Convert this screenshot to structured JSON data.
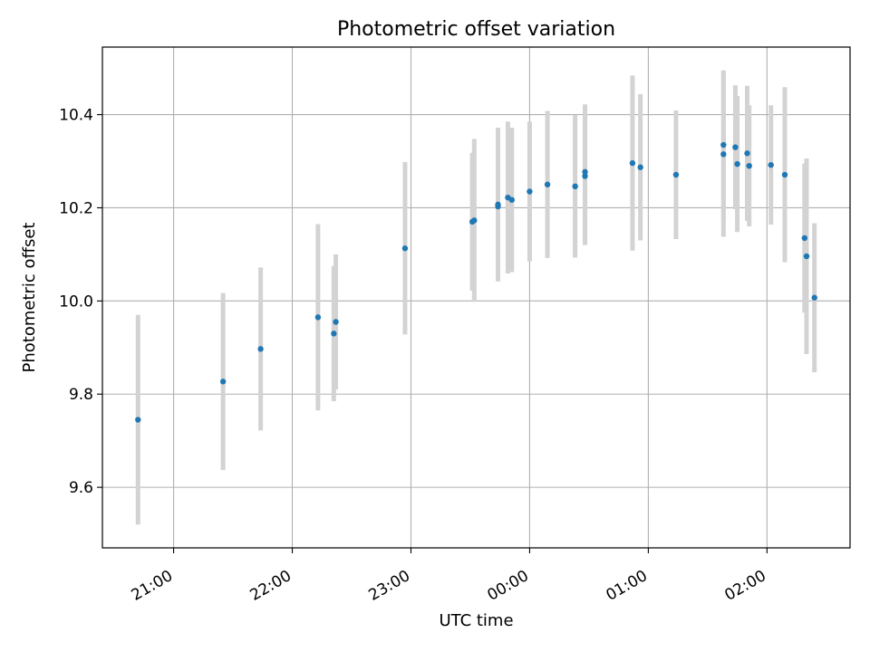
{
  "chart_data": {
    "type": "scatter",
    "title": "Photometric offset variation",
    "xlabel": "UTC time",
    "ylabel": "Photometric offset",
    "x_unit": "UTC",
    "xlim": [
      "20:24",
      "26:42"
    ],
    "ylim": [
      9.47,
      10.545
    ],
    "grid": true,
    "x_ticks": [
      "21:00",
      "22:00",
      "23:00",
      "00:00",
      "01:00",
      "02:00"
    ],
    "y_ticks": [
      "9.6",
      "9.8",
      "10.0",
      "10.2",
      "10.4"
    ],
    "series": [
      {
        "marker_color": "#1f77b4",
        "errorbar_color": "#d3d3d3",
        "points": [
          {
            "x": "20:42",
            "y": 9.745,
            "err": 0.225
          },
          {
            "x": "21:25",
            "y": 9.827,
            "err": 0.19
          },
          {
            "x": "21:44",
            "y": 9.897,
            "err": 0.175
          },
          {
            "x": "22:13",
            "y": 9.965,
            "err": 0.2
          },
          {
            "x": "22:21",
            "y": 9.93,
            "err": 0.145
          },
          {
            "x": "22:22",
            "y": 9.955,
            "err": 0.145
          },
          {
            "x": "22:57",
            "y": 10.113,
            "err": 0.185
          },
          {
            "x": "23:31",
            "y": 10.17,
            "err": 0.148
          },
          {
            "x": "23:32",
            "y": 10.173,
            "err": 0.175
          },
          {
            "x": "23:44",
            "y": 10.207,
            "err": 0.165
          },
          {
            "x": "23:44",
            "y": 10.203,
            "err": 0.155
          },
          {
            "x": "23:49",
            "y": 10.222,
            "err": 0.163
          },
          {
            "x": "23:51",
            "y": 10.217,
            "err": 0.155
          },
          {
            "x": "00:00",
            "y": 10.235,
            "err": 0.15
          },
          {
            "x": "00:09",
            "y": 10.25,
            "err": 0.158
          },
          {
            "x": "00:23",
            "y": 10.246,
            "err": 0.153
          },
          {
            "x": "00:28",
            "y": 10.268,
            "err": 0.148
          },
          {
            "x": "00:28",
            "y": 10.277,
            "err": 0.145
          },
          {
            "x": "00:52",
            "y": 10.296,
            "err": 0.188
          },
          {
            "x": "00:56",
            "y": 10.287,
            "err": 0.157
          },
          {
            "x": "01:14",
            "y": 10.271,
            "err": 0.138
          },
          {
            "x": "01:38",
            "y": 10.335,
            "err": 0.16
          },
          {
            "x": "01:38",
            "y": 10.315,
            "err": 0.177
          },
          {
            "x": "01:44",
            "y": 10.33,
            "err": 0.133
          },
          {
            "x": "01:45",
            "y": 10.294,
            "err": 0.146
          },
          {
            "x": "01:50",
            "y": 10.317,
            "err": 0.145
          },
          {
            "x": "01:51",
            "y": 10.29,
            "err": 0.13
          },
          {
            "x": "02:02",
            "y": 10.292,
            "err": 0.128
          },
          {
            "x": "02:09",
            "y": 10.271,
            "err": 0.188
          },
          {
            "x": "02:19",
            "y": 10.135,
            "err": 0.16
          },
          {
            "x": "02:20",
            "y": 10.096,
            "err": 0.21
          },
          {
            "x": "02:24",
            "y": 10.007,
            "err": 0.16
          }
        ]
      }
    ]
  }
}
